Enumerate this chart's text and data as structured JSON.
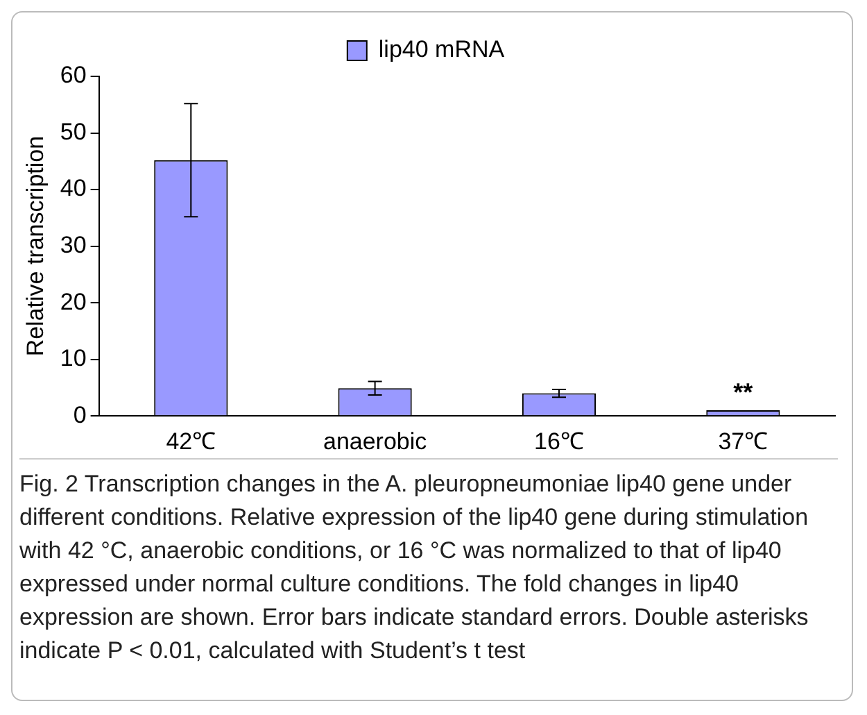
{
  "chart_data": {
    "type": "bar",
    "ylabel": "Relative transcription",
    "categories": [
      "42℃",
      "anaerobic",
      "16℃",
      "37℃"
    ],
    "series": [
      {
        "name": "lip40 mRNA",
        "color": "#9999ff",
        "values": [
          45.2,
          4.9,
          4.0,
          1.0
        ],
        "errors": [
          10,
          1.2,
          0.7,
          null
        ]
      }
    ],
    "ylim": [
      0,
      60
    ],
    "yticks": [
      0,
      10,
      20,
      30,
      40,
      50,
      60
    ],
    "grid": false,
    "legend": "top",
    "annotations": [
      {
        "text": "**",
        "x": "37℃",
        "y": 1.0
      },
      "Fig. 2 Transcription changes in the A. pleuropneumoniae lip40 gene under different conditions. Relative expression of the lip40 gene during stimulation with 42 °C, anaerobic conditions, or 16 °C was normalized to that of lip40 expressed under normal culture conditions. The fold changes in lip40 expression are shown. Error bars indicate standard errors. Double asterisks indicate P < 0.01, calculated with Student’s t test"
    ]
  }
}
